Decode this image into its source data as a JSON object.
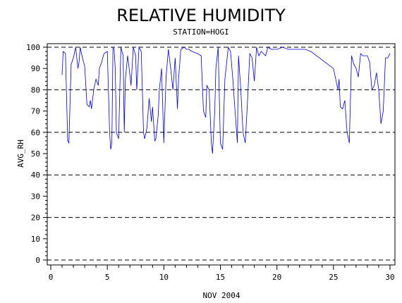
{
  "chart_data": {
    "type": "line",
    "title": "RELATIVE HUMIDITY",
    "subtitle": "STATION=HOGI",
    "xlabel": "NOV 2004",
    "ylabel": "AVG_RH",
    "xlim": [
      0,
      30
    ],
    "ylim": [
      0,
      100
    ],
    "x_ticks": [
      0,
      5,
      10,
      15,
      20,
      25,
      30
    ],
    "y_ticks": [
      0,
      10,
      20,
      30,
      40,
      50,
      60,
      70,
      80,
      90,
      100
    ],
    "grid_y_values": [
      0,
      20,
      40,
      60,
      80,
      100
    ],
    "grid": "dashed horizontal",
    "series_color": "#0000cc",
    "series": [
      {
        "x": [
          1.0,
          1.1,
          1.3,
          1.5,
          1.6,
          1.8,
          2.0,
          2.2,
          2.4,
          2.5,
          2.6,
          2.8,
          3.0,
          3.2,
          3.4,
          3.5,
          3.6,
          3.8,
          4.0,
          4.2,
          4.3,
          4.5,
          4.7,
          5.0,
          5.2,
          5.3,
          5.4,
          5.5,
          5.6,
          5.7,
          5.8,
          6.0,
          6.2,
          6.4,
          6.5,
          6.6,
          6.8,
          7.0,
          7.1,
          7.3,
          7.5,
          7.6,
          7.8,
          8.0,
          8.2,
          8.3,
          8.5,
          8.7,
          8.9,
          9.0,
          9.2,
          9.3,
          9.5,
          9.6,
          9.8,
          10.0,
          10.2,
          10.4,
          10.6,
          10.8,
          11.0,
          11.2,
          11.3,
          11.5,
          11.8,
          12.0,
          12.2,
          12.5,
          13.0,
          13.3,
          13.5,
          13.7,
          13.8,
          14.0,
          14.2,
          14.3,
          14.5,
          14.6,
          14.8,
          15.0,
          15.2,
          15.4,
          15.6,
          15.7,
          15.9,
          16.1,
          16.3,
          16.5,
          16.6,
          16.8,
          17.0,
          17.2,
          17.4,
          17.6,
          17.8,
          18.0,
          18.2,
          18.4,
          18.6,
          18.8,
          19.0,
          19.2,
          19.5,
          20.0,
          20.5,
          21.0,
          21.5,
          22.0,
          22.5,
          23.0,
          23.5,
          24.0,
          24.5,
          25.0,
          25.4,
          25.5,
          25.6,
          25.8,
          26.0,
          26.2,
          26.4,
          26.6,
          26.8,
          27.0,
          27.2,
          27.4,
          27.6,
          28.0,
          28.2,
          28.4,
          28.6,
          28.8,
          29.0,
          29.2,
          29.4,
          29.6,
          29.8,
          30.0
        ],
        "values": [
          87,
          98,
          97,
          56,
          55,
          92,
          95,
          100,
          90,
          93,
          100,
          95,
          91,
          73,
          72,
          75,
          71,
          80,
          85,
          82,
          90,
          93,
          97,
          98,
          60,
          52,
          55,
          100,
          99,
          90,
          60,
          57,
          100,
          96,
          60,
          85,
          96,
          87,
          82,
          100,
          96,
          80,
          100,
          98,
          60,
          57,
          62,
          76,
          65,
          72,
          56,
          57,
          68,
          80,
          90,
          55,
          86,
          99,
          90,
          80,
          95,
          71,
          85,
          99,
          100,
          99,
          99,
          98,
          97,
          96,
          70,
          67,
          82,
          80,
          55,
          50,
          70,
          90,
          100,
          55,
          52,
          85,
          95,
          100,
          98,
          85,
          70,
          55,
          96,
          80,
          60,
          55,
          75,
          97,
          95,
          84,
          100,
          96,
          98,
          97,
          96,
          100,
          99,
          99,
          100,
          99,
          99,
          99,
          99,
          98,
          96,
          94,
          92,
          90,
          80,
          85,
          72,
          71,
          75,
          60,
          55,
          96,
          92,
          90,
          86,
          97,
          96,
          96,
          93,
          80,
          82,
          88,
          80,
          64,
          70,
          95,
          95,
          97
        ]
      }
    ]
  }
}
